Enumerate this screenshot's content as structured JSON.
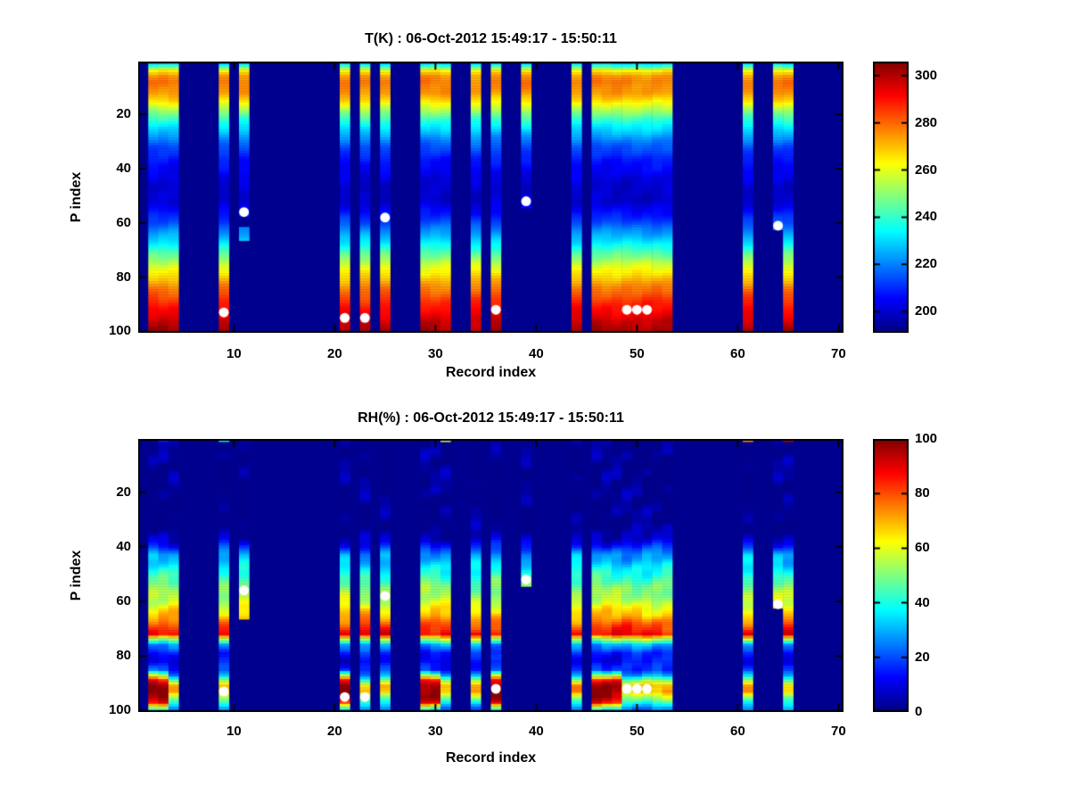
{
  "window": {
    "background": "#ffffff"
  },
  "colors": {
    "background_navy": "#00008F",
    "axis": "#000000",
    "text": "#000000",
    "marker": "#FFFFFF"
  },
  "chart_data": [
    {
      "type": "heatmap",
      "title": "T(K) : 06-Oct-2012 15:49:17 - 15:50:11",
      "xlabel": "Record index",
      "ylabel": "P index",
      "xlim": [
        0.5,
        70.5
      ],
      "ylim": [
        0.5,
        100.5
      ],
      "y_axis_reversed": true,
      "x_ticks": [
        10,
        20,
        30,
        40,
        50,
        60,
        70
      ],
      "y_ticks": [
        20,
        40,
        60,
        80,
        100
      ],
      "grid": false,
      "colormap": "jet",
      "color_limits": [
        191,
        306
      ],
      "colorbar_ticks": [
        200,
        220,
        240,
        260,
        280,
        300
      ],
      "record_columns": [
        {
          "records": [
            2,
            4
          ]
        },
        {
          "records": [
            9,
            9
          ]
        },
        {
          "records": [
            11,
            11
          ],
          "p_end": 57
        },
        {
          "records": [
            11,
            11
          ],
          "p_start": 62,
          "p_end": 66
        },
        {
          "records": [
            21,
            21
          ]
        },
        {
          "records": [
            23,
            23
          ]
        },
        {
          "records": [
            25,
            25
          ]
        },
        {
          "records": [
            29,
            31
          ]
        },
        {
          "records": [
            34,
            34
          ]
        },
        {
          "records": [
            36,
            36
          ]
        },
        {
          "records": [
            39,
            39
          ],
          "p_end": 54
        },
        {
          "records": [
            44,
            44
          ]
        },
        {
          "records": [
            46,
            53
          ]
        },
        {
          "records": [
            61,
            61
          ]
        },
        {
          "records": [
            64,
            64
          ],
          "p_end": 62
        },
        {
          "records": [
            65,
            65
          ]
        }
      ],
      "profiles": {
        "base": [
          [
            1,
            222
          ],
          [
            2,
            238
          ],
          [
            3,
            252
          ],
          [
            4,
            264
          ],
          [
            6,
            274
          ],
          [
            8,
            277
          ],
          [
            10,
            276
          ],
          [
            12,
            274
          ],
          [
            15,
            266
          ],
          [
            18,
            255
          ],
          [
            21,
            243
          ],
          [
            24,
            234
          ],
          [
            28,
            224
          ],
          [
            32,
            215
          ],
          [
            36,
            209
          ],
          [
            42,
            203
          ],
          [
            48,
            199
          ],
          [
            52,
            200
          ],
          [
            56,
            206
          ],
          [
            60,
            214
          ],
          [
            64,
            224
          ],
          [
            68,
            234
          ],
          [
            72,
            247
          ],
          [
            76,
            259
          ],
          [
            80,
            268
          ],
          [
            84,
            277
          ],
          [
            88,
            285
          ],
          [
            92,
            291
          ],
          [
            96,
            297
          ],
          [
            100,
            302
          ]
        ]
      },
      "special_bottom_records": [],
      "top_row_specks": [],
      "markers": [
        [
          9,
          93
        ],
        [
          11,
          56
        ],
        [
          21,
          95
        ],
        [
          23,
          95
        ],
        [
          25,
          58
        ],
        [
          36,
          92
        ],
        [
          39,
          52
        ],
        [
          49,
          92
        ],
        [
          50,
          92
        ],
        [
          51,
          92
        ],
        [
          64,
          61
        ]
      ],
      "marker_style": {
        "shape": "circle",
        "color": "#FFFFFF",
        "diameter": 11
      }
    },
    {
      "type": "heatmap",
      "title": "RH(%) : 06-Oct-2012 15:49:17 - 15:50:11",
      "xlabel": "Record index",
      "ylabel": "P index",
      "xlim": [
        0.5,
        70.5
      ],
      "ylim": [
        0.5,
        100.5
      ],
      "y_axis_reversed": true,
      "x_ticks": [
        10,
        20,
        30,
        40,
        50,
        60,
        70
      ],
      "y_ticks": [
        20,
        40,
        60,
        80,
        100
      ],
      "grid": false,
      "colormap": "jet",
      "color_limits": [
        0,
        100
      ],
      "colorbar_ticks": [
        0,
        20,
        40,
        60,
        80,
        100
      ],
      "record_columns": [
        {
          "records": [
            2,
            4
          ]
        },
        {
          "records": [
            9,
            9
          ]
        },
        {
          "records": [
            11,
            11
          ],
          "p_end": 66
        },
        {
          "records": [
            21,
            21
          ]
        },
        {
          "records": [
            23,
            23
          ]
        },
        {
          "records": [
            25,
            25
          ]
        },
        {
          "records": [
            29,
            31
          ]
        },
        {
          "records": [
            34,
            34
          ]
        },
        {
          "records": [
            36,
            36
          ]
        },
        {
          "records": [
            39,
            39
          ],
          "p_end": 54
        },
        {
          "records": [
            44,
            44
          ]
        },
        {
          "records": [
            46,
            53
          ]
        },
        {
          "records": [
            61,
            61
          ]
        },
        {
          "records": [
            64,
            64
          ],
          "p_end": 62
        },
        {
          "records": [
            65,
            65
          ]
        }
      ],
      "profiles": {
        "base": [
          [
            1,
            1
          ],
          [
            30,
            1
          ],
          [
            34,
            2
          ],
          [
            37,
            8
          ],
          [
            40,
            16
          ],
          [
            43,
            28
          ],
          [
            46,
            33
          ],
          [
            49,
            38
          ],
          [
            52,
            45
          ],
          [
            55,
            50
          ],
          [
            58,
            54
          ],
          [
            61,
            58
          ],
          [
            64,
            66
          ],
          [
            67,
            75
          ],
          [
            70,
            82
          ],
          [
            72,
            88
          ],
          [
            74,
            55
          ],
          [
            76,
            28
          ],
          [
            79,
            16
          ],
          [
            82,
            12
          ],
          [
            85,
            16
          ],
          [
            87,
            28
          ],
          [
            89,
            50
          ],
          [
            91,
            68
          ],
          [
            93,
            70
          ],
          [
            95,
            55
          ],
          [
            97,
            40
          ],
          [
            99,
            28
          ],
          [
            100,
            24
          ]
        ],
        "wet_bottom": [
          [
            1,
            1
          ],
          [
            30,
            1
          ],
          [
            34,
            2
          ],
          [
            37,
            8
          ],
          [
            40,
            16
          ],
          [
            43,
            28
          ],
          [
            46,
            33
          ],
          [
            49,
            38
          ],
          [
            52,
            45
          ],
          [
            55,
            50
          ],
          [
            58,
            54
          ],
          [
            61,
            58
          ],
          [
            64,
            66
          ],
          [
            67,
            75
          ],
          [
            70,
            82
          ],
          [
            72,
            88
          ],
          [
            74,
            55
          ],
          [
            76,
            28
          ],
          [
            79,
            16
          ],
          [
            82,
            12
          ],
          [
            85,
            20
          ],
          [
            87,
            55
          ],
          [
            89,
            88
          ],
          [
            91,
            97
          ],
          [
            93,
            99
          ],
          [
            95,
            97
          ],
          [
            97,
            85
          ],
          [
            99,
            45
          ],
          [
            100,
            28
          ]
        ]
      },
      "special_bottom_records": [
        2,
        3,
        21,
        29,
        30,
        36,
        46,
        47,
        48
      ],
      "top_row_specks": [
        [
          3,
          15
        ],
        [
          9,
          35
        ],
        [
          31,
          55
        ],
        [
          61,
          75
        ],
        [
          65,
          95
        ]
      ],
      "markers": [
        [
          9,
          93
        ],
        [
          11,
          56
        ],
        [
          21,
          95
        ],
        [
          23,
          95
        ],
        [
          25,
          58
        ],
        [
          36,
          92
        ],
        [
          39,
          52
        ],
        [
          49,
          92
        ],
        [
          50,
          92
        ],
        [
          51,
          92
        ],
        [
          64,
          61
        ]
      ],
      "marker_style": {
        "shape": "circle",
        "color": "#FFFFFF",
        "diameter": 11
      }
    }
  ]
}
